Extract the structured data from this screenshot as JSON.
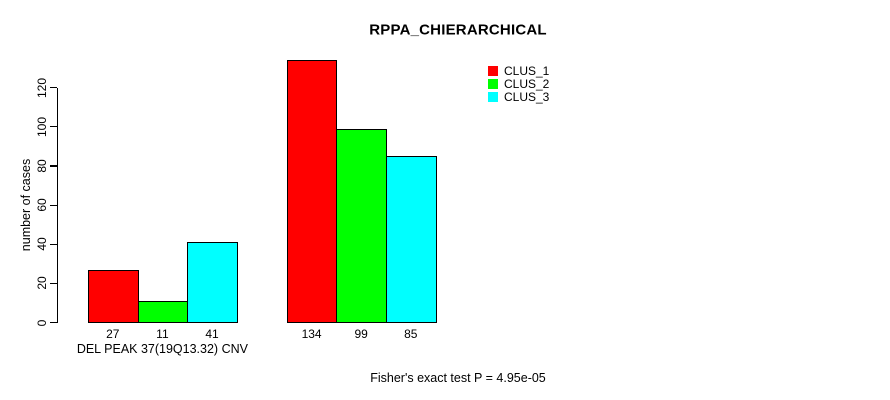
{
  "title": "RPPA_CHIERARCHICAL",
  "footer": "Fisher's exact test P = 4.95e-05",
  "chart_data": {
    "type": "bar",
    "title": "RPPA_CHIERARCHICAL",
    "ylabel": "number of cases",
    "xlabel": "",
    "categories": [
      "DEL PEAK 37(19Q13.32) CNV",
      ""
    ],
    "series": [
      {
        "name": "CLUS_1",
        "color": "#ff0000",
        "values": [
          27,
          134
        ]
      },
      {
        "name": "CLUS_2",
        "color": "#00ff00",
        "values": [
          11,
          99
        ]
      },
      {
        "name": "CLUS_3",
        "color": "#00ffff",
        "values": [
          41,
          85
        ]
      }
    ],
    "bar_value_labels": [
      [
        27,
        11,
        41
      ],
      [
        134,
        99,
        85
      ]
    ],
    "yticks": [
      0,
      20,
      40,
      60,
      80,
      100,
      120
    ],
    "ylim": [
      0,
      140
    ],
    "grid": false,
    "legend_position": "top-right",
    "bar_border_color": "#000000",
    "background_color": "#ffffff",
    "annotation": "Fisher's exact test P = 4.95e-05"
  }
}
